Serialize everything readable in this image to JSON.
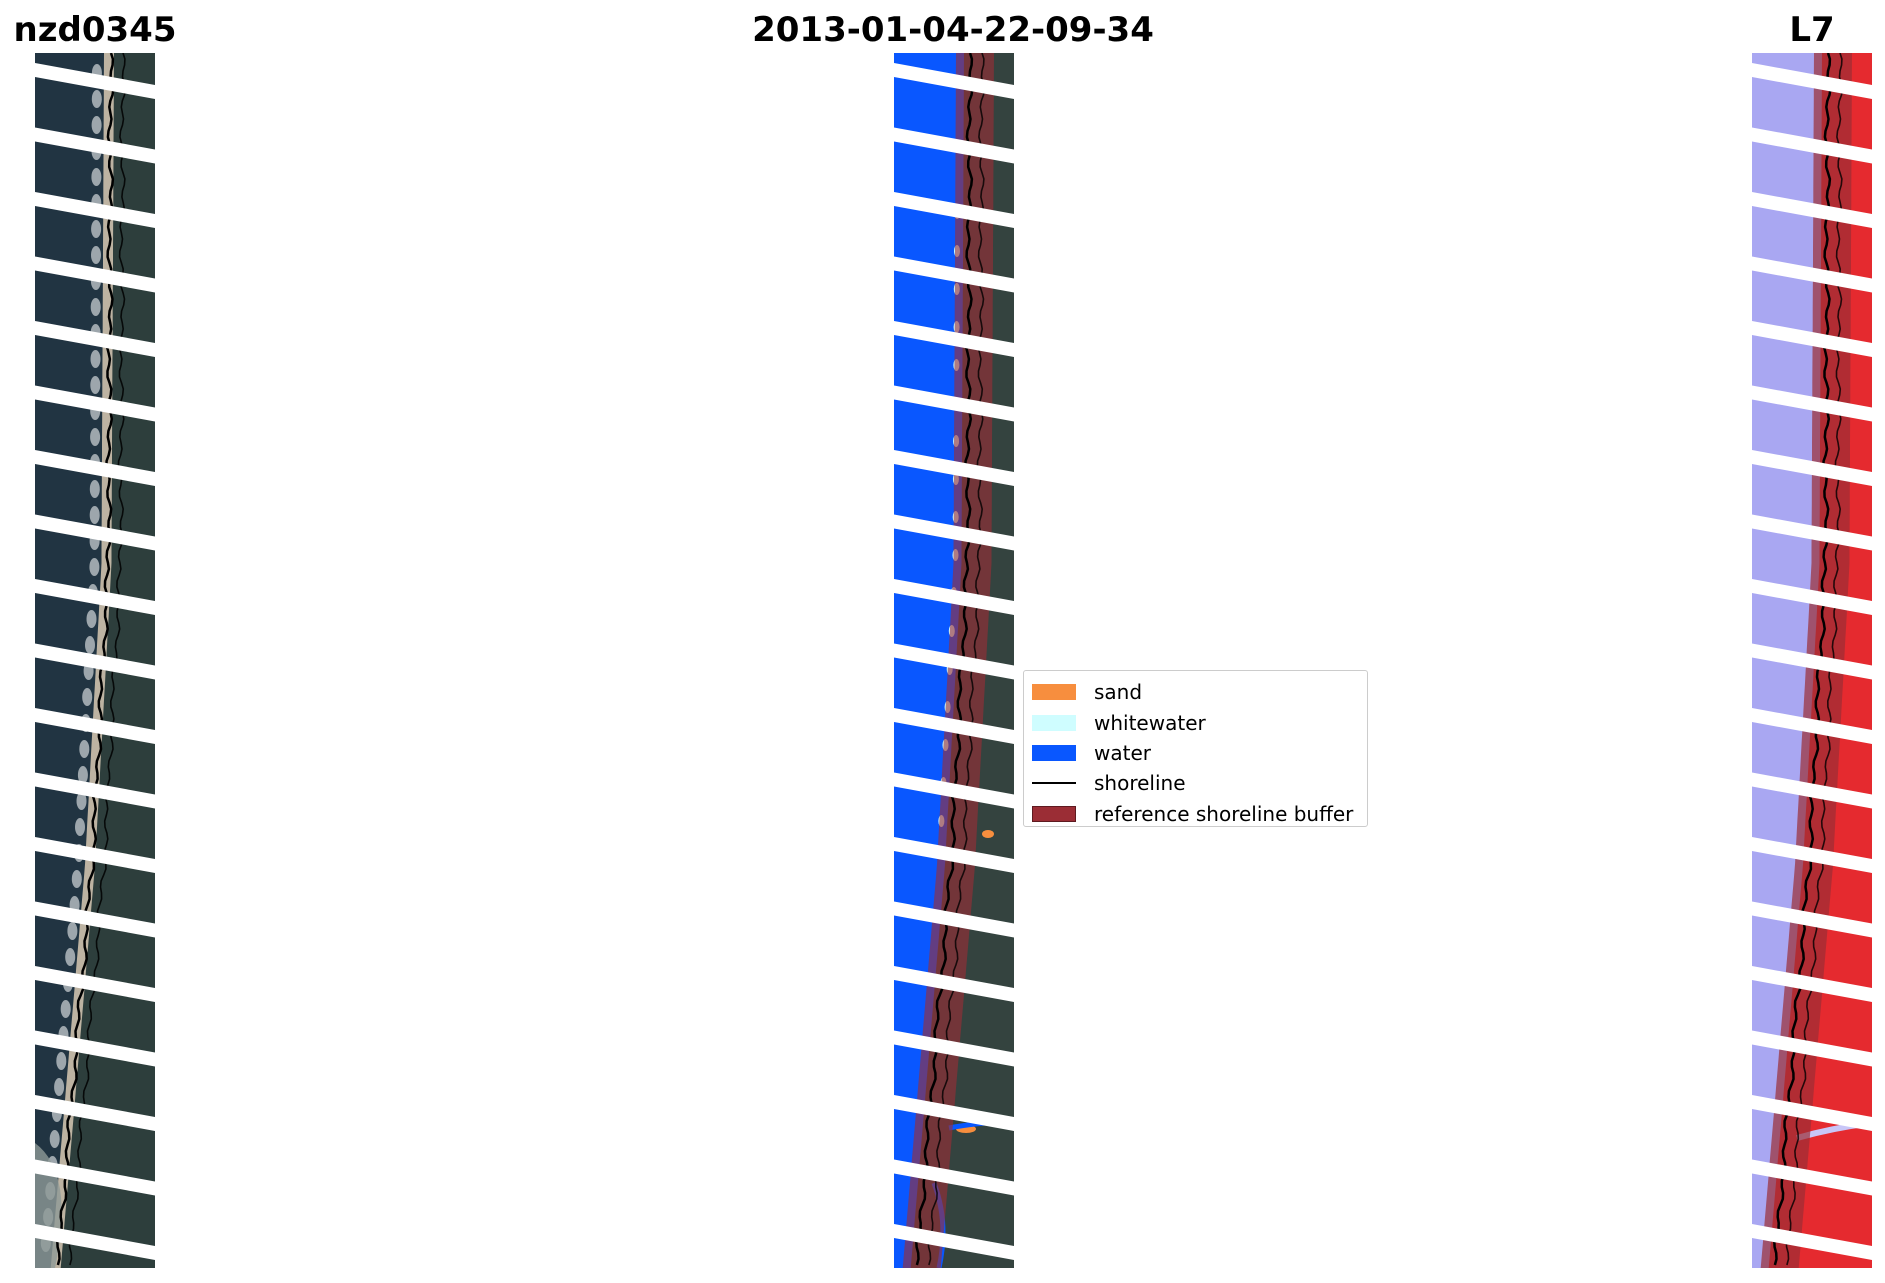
{
  "titles": {
    "site": "nzd0345",
    "date": "2013-01-04-22-09-34",
    "satellite": "L7"
  },
  "panels": [
    {
      "name": "rgb-image-panel",
      "content": "satellite RGB composite with detected shoreline"
    },
    {
      "name": "classified-image-panel",
      "content": "classified image with reference shoreline buffer"
    },
    {
      "name": "mndwi-image-panel",
      "content": "MNDWI index image with reference shoreline buffer"
    }
  ],
  "legend": {
    "items": [
      {
        "label": "sand",
        "color": "#f78e3e",
        "kind": "patch"
      },
      {
        "label": "whitewater",
        "color": "#cffdff",
        "kind": "patch"
      },
      {
        "label": "water",
        "color": "#0957ff",
        "kind": "patch"
      },
      {
        "label": "shoreline",
        "color": "#000000",
        "kind": "line"
      },
      {
        "label": "reference shoreline buffer",
        "color": "#9b2d35",
        "kind": "patch"
      }
    ]
  },
  "colors": {
    "background": "#ffffff",
    "land_dark": "#2d3e3c",
    "water_rgb": "#213442",
    "beach": "#bdb3a2",
    "class_water": "#0957ff",
    "buffer": "#9b2d35",
    "index_low": "#a9a7f2",
    "index_high": "#e52a2f",
    "scan_gap": "#ffffff"
  }
}
